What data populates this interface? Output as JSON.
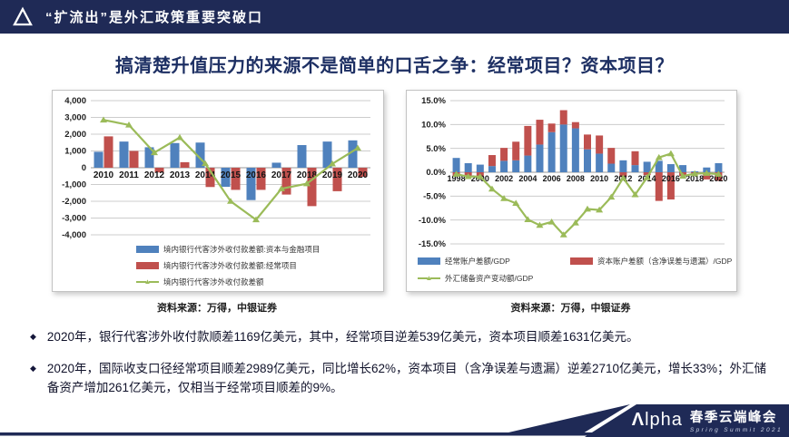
{
  "header": {
    "title": "“扩流出”是外汇政策重要突破口"
  },
  "slide_title": "搞清楚升值压力的来源不是简单的口舌之争：经常项目？资本项目？",
  "colors": {
    "navy": "#1f2a56",
    "bar_blue": "#4f81bd",
    "bar_red": "#c0504d",
    "line_green": "#9bbb59",
    "title_navy": "#1d2f63"
  },
  "icons": {
    "header_logo": "triangle-outline",
    "bullet": "◆",
    "line_marker": "▲"
  },
  "chart_data": [
    {
      "type": "bar",
      "title": "",
      "xlabel": "",
      "ylabel": "",
      "bar_mode": "grouped",
      "grid": true,
      "legend_position": "bottom",
      "categories": [
        "2010",
        "2011",
        "2012",
        "2013",
        "2014",
        "2015",
        "2016",
        "2017",
        "2018",
        "2019",
        "2020"
      ],
      "ylim": [
        -4000,
        4000
      ],
      "ytick_step": 1000,
      "ytick_labels": [
        "4,000",
        "3,000",
        "2,000",
        "1,000",
        "0",
        "-1,000",
        "-2,000",
        "-3,000",
        "-4,000"
      ],
      "xtick_every": 1,
      "series": [
        {
          "name": "境内银行代客涉外收付款差额:资本与金融项目",
          "kind": "bar",
          "color": "#4f81bd",
          "values": [
            950,
            1560,
            1220,
            1470,
            1500,
            -1140,
            -1930,
            300,
            1350,
            1560,
            1631
          ]
        },
        {
          "name": "境内银行代客涉外收付款差额:经常项目",
          "kind": "bar",
          "color": "#c0504d",
          "values": [
            1870,
            1000,
            -280,
            330,
            -1150,
            -1320,
            -1320,
            -1600,
            -2290,
            -1400,
            -539
          ]
        },
        {
          "name": "境内银行代客涉外收付款差额",
          "kind": "line",
          "color": "#9bbb59",
          "values": [
            2850,
            2550,
            900,
            1800,
            250,
            -2000,
            -3100,
            -1250,
            -950,
            230,
            1169
          ]
        }
      ],
      "source": "资料来源：万得，中银证券"
    },
    {
      "type": "bar",
      "title": "",
      "xlabel": "",
      "ylabel": "",
      "bar_mode": "stacked",
      "grid": true,
      "legend_position": "bottom",
      "categories": [
        "1998",
        "1999",
        "2000",
        "2001",
        "2002",
        "2003",
        "2004",
        "2005",
        "2006",
        "2007",
        "2008",
        "2009",
        "2010",
        "2011",
        "2012",
        "2013",
        "2014",
        "2015",
        "2016",
        "2017",
        "2018",
        "2019",
        "2020"
      ],
      "ylim": [
        -15,
        15
      ],
      "ytick_step": 5,
      "ytick_labels": [
        "15.0%",
        "10.0%",
        "5.0%",
        "0.0%",
        "-5.0%",
        "-10.0%",
        "-15.0%"
      ],
      "xtick_every": 2,
      "series": [
        {
          "name": "经常账户差额/GDP",
          "kind": "bar",
          "color": "#4f81bd",
          "values": [
            3.0,
            1.9,
            1.6,
            1.3,
            2.4,
            2.5,
            3.5,
            5.8,
            8.4,
            10.0,
            9.2,
            4.8,
            3.9,
            1.8,
            2.5,
            1.5,
            2.2,
            2.4,
            1.7,
            1.5,
            0.2,
            1.0,
            1.9
          ]
        },
        {
          "name": "资本账户差额（含净误差与遗漏）/GDP",
          "kind": "bar",
          "color": "#c0504d",
          "values": [
            -0.9,
            -0.9,
            -1.0,
            2.3,
            2.7,
            3.9,
            6.2,
            5.2,
            1.8,
            3.0,
            1.3,
            3.1,
            3.8,
            3.3,
            -1.0,
            2.9,
            -0.6,
            -6.0,
            -5.7,
            -0.8,
            -0.5,
            -1.5,
            -1.8
          ]
        },
        {
          "name": "外汇储备资产变动额/GDP",
          "kind": "line",
          "color": "#9bbb59",
          "values": [
            -0.4,
            -0.9,
            -0.9,
            -3.5,
            -5.5,
            -6.5,
            -9.9,
            -11.1,
            -10.4,
            -13.1,
            -10.6,
            -7.7,
            -7.9,
            -5.2,
            -1.2,
            -4.7,
            -1.1,
            3.1,
            3.9,
            -0.8,
            -0.3,
            -0.2,
            -0.4
          ]
        }
      ],
      "source": "资料来源：万得，中银证券"
    }
  ],
  "bullets": [
    {
      "text": "2020年，银行代客涉外收付款顺差1169亿美元，其中，经常项目逆差539亿美元，资本项目顺差1631亿美元。"
    },
    {
      "text": "2020年，国际收支口径经常项目顺差2989亿美元，同比增长62%，资本项目（含净误差与遗漏）逆差2710亿美元，增长33%；外汇储备资产增加261亿美元，仅相当于经常项目顺差的9%。"
    }
  ],
  "banner": {
    "alpha_lambda": "Λ",
    "alpha_rest": "lpha",
    "cn": "春季云端峰会",
    "en": "Spring Summit 2021"
  }
}
